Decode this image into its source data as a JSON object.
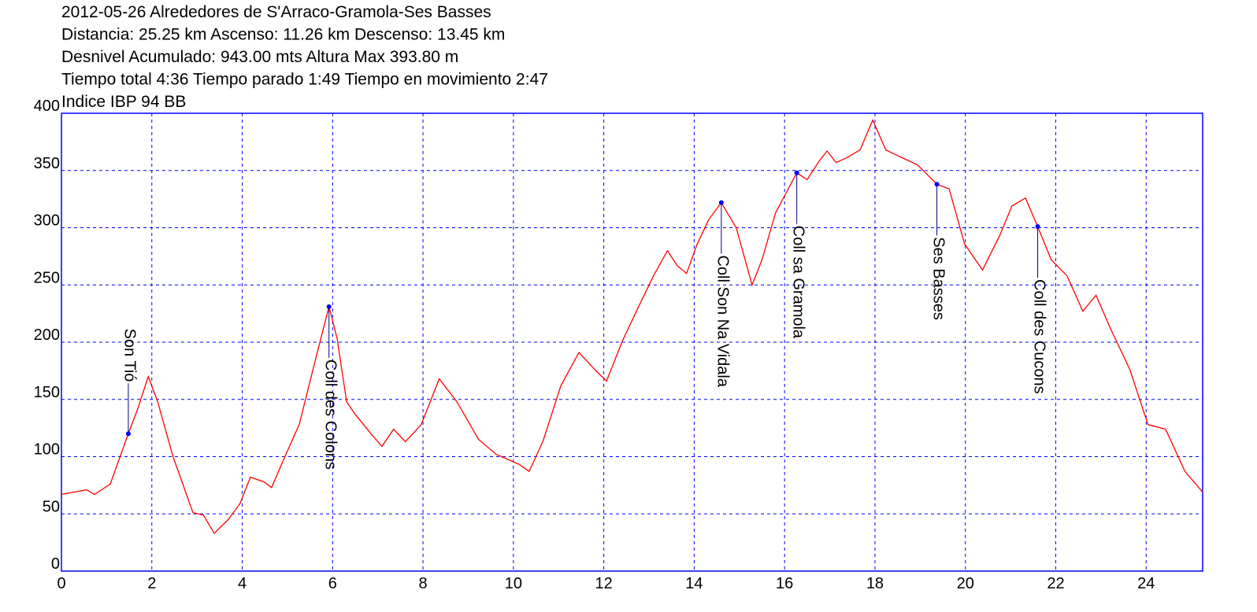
{
  "chart_data": {
    "type": "line",
    "title_lines": [
      "2012-05-26 Alrededores de S'Arraco-Gramola-Ses Basses",
      "Distancia: 25.25 km Ascenso: 11.26 km Descenso: 13.45 km",
      "Desnivel Acumulado: 943.00 mts  Altura Max 393.80 m",
      "Tiempo total 4:36 Tiempo parado 1:49 Tiempo en movimiento 2:47",
      "Indice IBP 94 BB"
    ],
    "x": [
      0,
      0.56,
      0.73,
      1.08,
      1.48,
      1.69,
      1.92,
      2.13,
      2.47,
      2.91,
      3.14,
      3.38,
      3.69,
      3.95,
      4.18,
      4.48,
      4.65,
      4.91,
      5.26,
      5.61,
      5.92,
      6.1,
      6.31,
      6.48,
      6.83,
      7.09,
      7.35,
      7.61,
      7.96,
      8.36,
      8.75,
      9.23,
      9.62,
      10.14,
      10.35,
      10.66,
      11.05,
      11.45,
      11.8,
      12.06,
      12.4,
      12.72,
      13.1,
      13.41,
      13.62,
      13.83,
      14.06,
      14.32,
      14.6,
      14.93,
      15.28,
      15.5,
      15.8,
      16.27,
      16.5,
      16.76,
      16.94,
      17.14,
      17.37,
      17.67,
      17.95,
      18.24,
      18.5,
      18.94,
      19.37,
      19.64,
      19.98,
      20.38,
      20.77,
      21.03,
      21.33,
      21.6,
      21.9,
      22.25,
      22.6,
      22.89,
      23.21,
      23.64,
      24.04,
      24.43,
      24.86,
      25.25
    ],
    "values": [
      67,
      71,
      67,
      76,
      120,
      142,
      170,
      148,
      100,
      51,
      49,
      33,
      45,
      59,
      82,
      78,
      73,
      97,
      128,
      183,
      231,
      203,
      148,
      138,
      121,
      109,
      124,
      113,
      128,
      168,
      148,
      115,
      102,
      93,
      87,
      114,
      162,
      191,
      176,
      166,
      200,
      227,
      258,
      280,
      267,
      260,
      285,
      307,
      322,
      300,
      250,
      272,
      313,
      348,
      342,
      358,
      367,
      357,
      361,
      368,
      394,
      368,
      363,
      355,
      338,
      334,
      286,
      263,
      294,
      319,
      326,
      301,
      272,
      258,
      227,
      241,
      212,
      176,
      128,
      124,
      87,
      69
    ],
    "color": "#ff0000",
    "waypoints": [
      {
        "name": "Son Tió",
        "x": 1.48,
        "y": 120
      },
      {
        "name": "Coll des Colons",
        "x": 5.92,
        "y": 231
      },
      {
        "name": "Coll Son Na Vidala",
        "x": 14.6,
        "y": 322
      },
      {
        "name": "Coll sa Gramola",
        "x": 16.27,
        "y": 348
      },
      {
        "name": "Ses Basses",
        "x": 19.37,
        "y": 338
      },
      {
        "name": "Coll des Cucons",
        "x": 21.6,
        "y": 301
      }
    ],
    "waypoint_color": "#0000ff",
    "xlim": [
      0,
      25.25
    ],
    "ylim": [
      0,
      400
    ],
    "xticks": [
      0,
      2,
      4,
      6,
      8,
      10,
      12,
      14,
      16,
      18,
      20,
      22,
      24
    ],
    "yticks": [
      0,
      50,
      100,
      150,
      200,
      250,
      300,
      350,
      400
    ],
    "grid": true,
    "grid_color": "#0000ff"
  }
}
